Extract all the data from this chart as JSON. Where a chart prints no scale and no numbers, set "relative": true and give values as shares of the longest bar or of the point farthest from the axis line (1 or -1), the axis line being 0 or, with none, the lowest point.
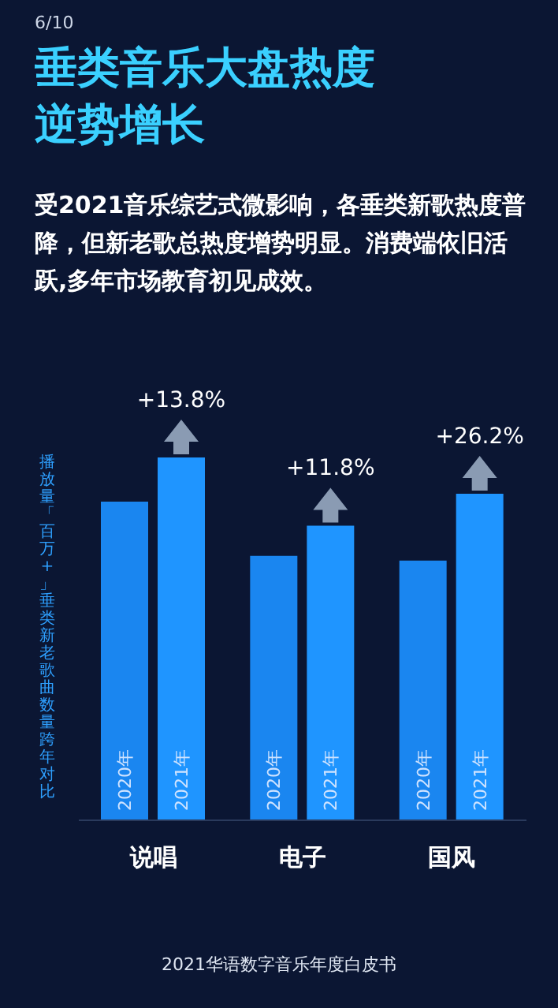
{
  "chart_data": {
    "type": "bar",
    "title": "垂类音乐大盘热度逆势增长",
    "subtitle": "受2021音乐综艺式微影响，各垂类新歌热度普降，但新老歌总热度增势明显。消费端依旧活跃,多年市场教育初见成效。",
    "ylabel": "播放量「百万+」垂类新老歌曲数量跨年对比",
    "relative": true,
    "categories": [
      "说唱",
      "电子",
      "国风"
    ],
    "series": [
      {
        "name": "2020年",
        "color": "#1a86f0",
        "values": [
          0.878,
          0.729,
          0.716
        ]
      },
      {
        "name": "2021年",
        "color": "#1f95ff",
        "values": [
          1,
          0.812,
          0.9
        ]
      }
    ],
    "annotations": [
      "6/10",
      {
        "text": "+13.8%",
        "x": "说唱",
        "y": 1
      },
      {
        "text": "+11.8%",
        "x": "电子",
        "y": 0.812
      },
      {
        "text": "+26.2%",
        "x": "国风",
        "y": 0.9
      },
      "2021华语数字音乐年度白皮书"
    ],
    "grid": false,
    "legend": false
  }
}
